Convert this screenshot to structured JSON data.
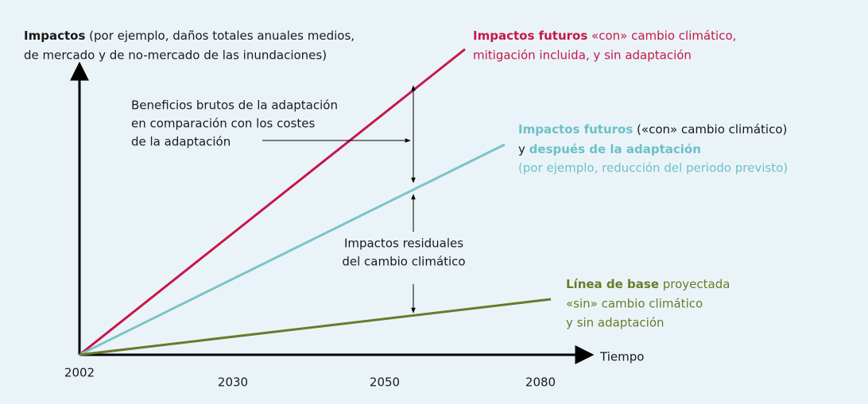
{
  "y_axis_label": {
    "line1_bold": "Impactos",
    "line1_rest": " (por ejemplo, daños totales anuales medios,",
    "line2": "de mercado y de no-mercado de las inundaciones)"
  },
  "x_axis_label": "Tiempo",
  "x_ticks": [
    "2002",
    "2030",
    "2050",
    "2080"
  ],
  "future_impacts": {
    "line1_bold": "Impactos futuros",
    "line1_rest": " «con» cambio climático,",
    "line2": "mitigación incluida, y sin adaptación"
  },
  "adapted_impacts": {
    "line1_bold": "Impactos futuros",
    "line1_rest": " («con» cambio climático)",
    "line2_pre": "y ",
    "line2_bold": "después de la adaptación",
    "line3": "(por ejemplo, reducción del periodo previsto)"
  },
  "baseline": {
    "line1_bold": "Línea de base",
    "line1_rest": " proyectada",
    "line2": "«sin» cambio climático",
    "line3": "y sin adaptación"
  },
  "benefits": [
    "Beneficios brutos de la adaptación",
    "en comparación con los costes",
    "de la adaptación"
  ],
  "residual": [
    "Impactos residuales",
    "del cambio climático"
  ]
}
